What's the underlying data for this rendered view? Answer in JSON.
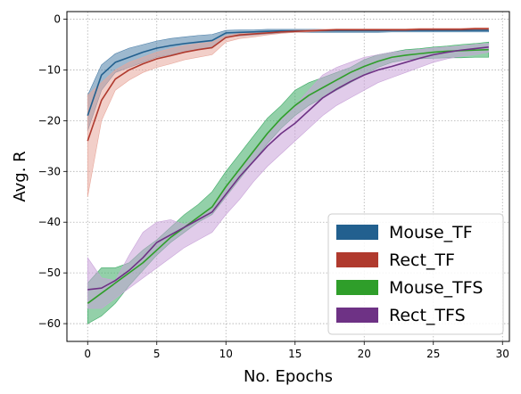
{
  "chart_data": {
    "type": "line",
    "xlabel": "No. Epochs",
    "ylabel": "Avg. R",
    "xlim": [
      -1.5,
      30.5
    ],
    "ylim": [
      -63.5,
      1.5
    ],
    "xticks": [
      0,
      5,
      10,
      15,
      20,
      25,
      30
    ],
    "yticks": [
      0,
      -10,
      -20,
      -30,
      -40,
      -50,
      -60
    ],
    "grid": true,
    "legend_position": "bottom-right",
    "x": [
      0,
      1,
      2,
      3,
      4,
      5,
      6,
      7,
      8,
      9,
      10,
      11,
      12,
      13,
      14,
      15,
      16,
      17,
      18,
      19,
      20,
      21,
      22,
      23,
      24,
      25,
      26,
      27,
      28,
      29
    ],
    "series": [
      {
        "name": "Mouse_TF",
        "color": "#22608f",
        "band_color": "#4c7fa8",
        "values": [
          -19,
          -11,
          -8.5,
          -7.5,
          -6.5,
          -5.7,
          -5.2,
          -4.8,
          -4.5,
          -4.2,
          -2.7,
          -2.6,
          -2.5,
          -2.4,
          -2.3,
          -2.3,
          -2.3,
          -2.3,
          -2.3,
          -2.3,
          -2.3,
          -2.3,
          -2.2,
          -2.2,
          -2.2,
          -2.2,
          -2.2,
          -2.2,
          -2.2,
          -2.2
        ],
        "lower": [
          -22,
          -14,
          -10.5,
          -9.5,
          -8.5,
          -7.5,
          -7,
          -6.5,
          -6,
          -5.7,
          -3.5,
          -3.3,
          -3.1,
          -2.9,
          -2.7,
          -2.6,
          -2.6,
          -2.6,
          -2.6,
          -2.6,
          -2.6,
          -2.6,
          -2.5,
          -2.5,
          -2.5,
          -2.5,
          -2.5,
          -2.5,
          -2.5,
          -2.5
        ],
        "upper": [
          -15,
          -9,
          -6.8,
          -5.7,
          -5,
          -4.3,
          -3.8,
          -3.5,
          -3.2,
          -3,
          -2.2,
          -2.1,
          -2.1,
          -2,
          -2,
          -2,
          -2,
          -2,
          -2,
          -2,
          -2,
          -2,
          -2,
          -2,
          -2,
          -2,
          -2,
          -2,
          -2,
          -2
        ]
      },
      {
        "name": "Rect_TF",
        "color": "#b03a2e",
        "band_color": "#e8a89c",
        "values": [
          -24,
          -16,
          -11.8,
          -10,
          -8.8,
          -7.8,
          -7.2,
          -6.5,
          -6,
          -5.6,
          -3.6,
          -3.1,
          -2.9,
          -2.7,
          -2.5,
          -2.4,
          -2.3,
          -2.2,
          -2.1,
          -2.1,
          -2.1,
          -2.1,
          -2.1,
          -2.1,
          -2.0,
          -2.0,
          -2.0,
          -2.0,
          -1.9,
          -1.9
        ],
        "lower": [
          -35,
          -20,
          -14,
          -12,
          -10.5,
          -9.5,
          -8.8,
          -8,
          -7.5,
          -7,
          -4.5,
          -3.8,
          -3.5,
          -3.1,
          -2.8,
          -2.6,
          -2.5,
          -2.4,
          -2.3,
          -2.3,
          -2.3,
          -2.3,
          -2.3,
          -2.3,
          -2.2,
          -2.2,
          -2.2,
          -2.2,
          -2.1,
          -2.1
        ],
        "upper": [
          -15,
          -12.5,
          -10,
          -8.5,
          -7.5,
          -6.5,
          -5.8,
          -5.2,
          -4.8,
          -4.5,
          -3.2,
          -2.8,
          -2.6,
          -2.4,
          -2.3,
          -2.2,
          -2.1,
          -2.0,
          -1.9,
          -1.9,
          -1.9,
          -1.9,
          -1.9,
          -1.9,
          -1.8,
          -1.8,
          -1.8,
          -1.8,
          -1.7,
          -1.7
        ]
      },
      {
        "name": "Mouse_TFS",
        "color": "#2f9e2a",
        "band_color": "#3aaa63",
        "values": [
          -56,
          -54,
          -52,
          -50,
          -48,
          -45.5,
          -43,
          -41,
          -39,
          -37,
          -33,
          -29.5,
          -26,
          -22.5,
          -19.5,
          -17,
          -15,
          -13.5,
          -12,
          -10.5,
          -9.3,
          -8.3,
          -7.5,
          -7.1,
          -6.8,
          -6.5,
          -6.3,
          -6.2,
          -6.1,
          -6.0
        ],
        "lower": [
          -60,
          -58.5,
          -56,
          -52.5,
          -49.5,
          -46.5,
          -44,
          -42,
          -40,
          -38.5,
          -35,
          -31.5,
          -28,
          -24.5,
          -21.5,
          -19,
          -17,
          -15.5,
          -14,
          -12.5,
          -11,
          -9.5,
          -8.5,
          -8,
          -7.8,
          -7.7,
          -7.6,
          -7.6,
          -7.5,
          -7.5
        ],
        "upper": [
          -52,
          -49,
          -49,
          -48,
          -45.5,
          -43.5,
          -41,
          -38.5,
          -36.5,
          -34,
          -30,
          -26.5,
          -23,
          -19.5,
          -17,
          -14,
          -12.5,
          -11.5,
          -10.5,
          -9.5,
          -8,
          -7,
          -6.5,
          -6,
          -5.8,
          -5.5,
          -5.3,
          -5,
          -4.8,
          -4.5
        ]
      },
      {
        "name": "Rect_TFS",
        "color": "#6e3285",
        "band_color": "#c9a3d9",
        "values": [
          -53.3,
          -53,
          -51.5,
          -49.5,
          -47,
          -44,
          -42.5,
          -41,
          -39.5,
          -38,
          -34.5,
          -31,
          -28,
          -25,
          -22.5,
          -20.5,
          -18,
          -15.5,
          -13.8,
          -12.3,
          -11,
          -10,
          -9.3,
          -8.5,
          -7.7,
          -7,
          -6.5,
          -6.1,
          -5.8,
          -5.5
        ],
        "lower": [
          -57,
          -57,
          -55,
          -53,
          -51,
          -49,
          -47,
          -45,
          -43.5,
          -42,
          -38.5,
          -35.5,
          -32,
          -29,
          -26.5,
          -24,
          -21.5,
          -19,
          -17,
          -15.5,
          -14,
          -12.5,
          -11.5,
          -10.5,
          -9.5,
          -8.5,
          -7.8,
          -7.3,
          -7,
          -6.5
        ],
        "upper": [
          -47,
          -51,
          -51.5,
          -46.5,
          -42,
          -40,
          -39.5,
          -40.5,
          -39,
          -37,
          -33.5,
          -29.5,
          -26,
          -22.5,
          -19.5,
          -17,
          -14,
          -11,
          -9.5,
          -8.5,
          -7.5,
          -7,
          -6.5,
          -6.2,
          -6,
          -5.7,
          -5.5,
          -5.3,
          -5,
          -4.8
        ]
      }
    ]
  }
}
